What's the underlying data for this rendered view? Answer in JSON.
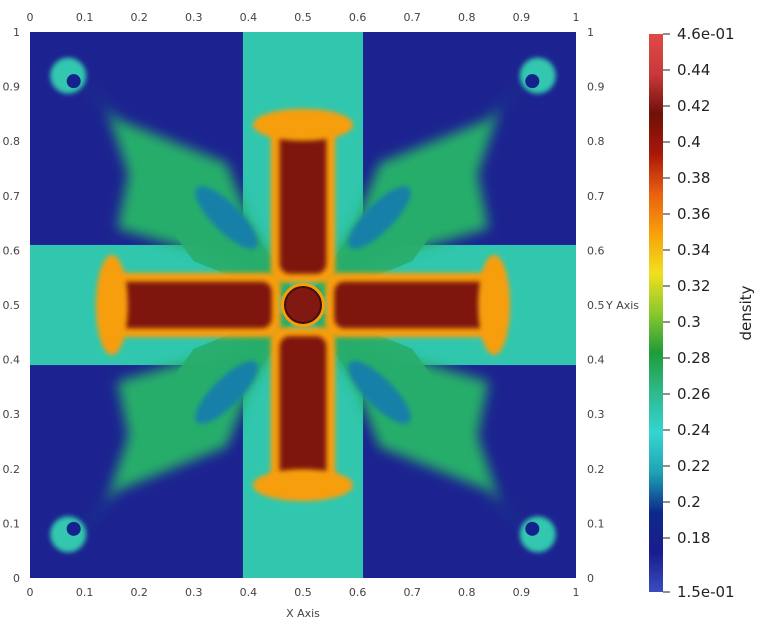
{
  "chart_data": {
    "type": "heatmap",
    "title": "",
    "xlabel": "X Axis",
    "ylabel": "Y Axis",
    "xlim": [
      0,
      1
    ],
    "ylim": [
      0,
      1
    ],
    "x_ticks": [
      "0",
      "0.1",
      "0.2",
      "0.3",
      "0.4",
      "0.5",
      "0.6",
      "0.7",
      "0.8",
      "0.9",
      "1"
    ],
    "y_ticks": [
      "0",
      "0.1",
      "0.2",
      "0.3",
      "0.4",
      "0.5",
      "0.6",
      "0.7",
      "0.8",
      "0.9",
      "1"
    ],
    "x_tick_values": [
      0,
      0.1,
      0.2,
      0.3,
      0.4,
      0.5,
      0.6,
      0.7,
      0.8,
      0.9,
      1
    ],
    "y_tick_values": [
      0,
      0.1,
      0.2,
      0.3,
      0.4,
      0.5,
      0.6,
      0.7,
      0.8,
      0.9,
      1
    ],
    "colorbar": {
      "title": "density",
      "min": 0.15,
      "max": 0.46,
      "min_label": "1.5e-01",
      "max_label": "4.6e-01",
      "tick_values": [
        0.18,
        0.2,
        0.22,
        0.24,
        0.26,
        0.28,
        0.3,
        0.32,
        0.34,
        0.36,
        0.38,
        0.4,
        0.42,
        0.44
      ],
      "tick_labels": [
        "0.18",
        "0.2",
        "0.22",
        "0.24",
        "0.26",
        "0.28",
        "0.3",
        "0.32",
        "0.34",
        "0.36",
        "0.38",
        "0.4",
        "0.42",
        "0.44"
      ],
      "colormap": [
        "#3b4cc0",
        "#1a1c8c",
        "#0b2a8c",
        "#1fa3b3",
        "#34d6cf",
        "#2fb98f",
        "#1f9c3a",
        "#8cc82c",
        "#f0e020",
        "#f8a00a",
        "#e86010",
        "#a81808",
        "#701008",
        "#c83a3a",
        "#e04848"
      ]
    },
    "regions": [
      {
        "feature": "background corners",
        "density": 0.18
      },
      {
        "feature": "vertical and horizontal cyan bands",
        "density": 0.25
      },
      {
        "feature": "green diagonal plumes",
        "density": 0.27
      },
      {
        "feature": "diagonal blue cavities",
        "density": 0.21
      },
      {
        "feature": "central cross arms",
        "density": 0.41
      },
      {
        "feature": "cross arm rims",
        "density": 0.35
      },
      {
        "feature": "center ring",
        "density": 0.42
      }
    ]
  }
}
